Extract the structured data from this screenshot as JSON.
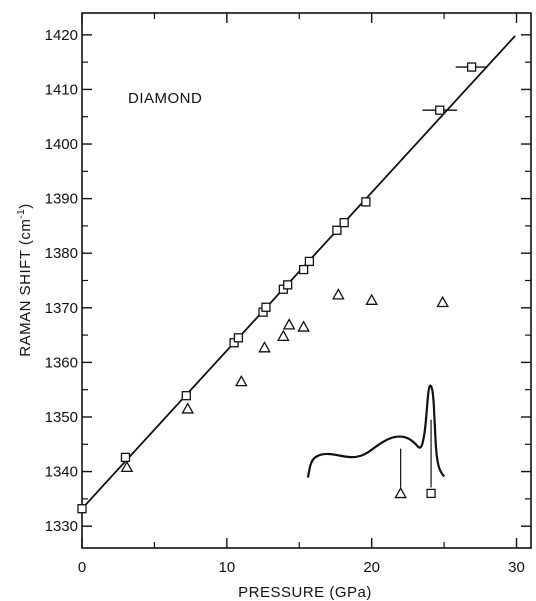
{
  "chart_data": {
    "type": "scatter",
    "annotation": "DIAMOND",
    "xlabel": "PRESSURE (GPa)",
    "ylabel_main": "RAMAN SHIFT (cm",
    "ylabel_sup": "-1",
    "ylabel_close": ")",
    "xlim": [
      0,
      31
    ],
    "ylim": [
      1326,
      1424
    ],
    "x_ticks": [
      0,
      10,
      20,
      30
    ],
    "x_tick_labels": [
      "0",
      "10",
      "20",
      "30"
    ],
    "y_ticks": [
      1330,
      1340,
      1350,
      1360,
      1370,
      1380,
      1390,
      1400,
      1410,
      1420
    ],
    "y_tick_labels": [
      "1330",
      "1340",
      "1350",
      "1360",
      "1370",
      "1380",
      "1390",
      "1400",
      "1410",
      "1420"
    ],
    "grid": false,
    "series": [
      {
        "marker": "square",
        "points": [
          {
            "x": 0,
            "y": 1333.2
          },
          {
            "x": 3.0,
            "y": 1342.6
          },
          {
            "x": 7.2,
            "y": 1353.9
          },
          {
            "x": 10.5,
            "y": 1363.6
          },
          {
            "x": 10.8,
            "y": 1364.5
          },
          {
            "x": 12.5,
            "y": 1369.2
          },
          {
            "x": 12.7,
            "y": 1370.1
          },
          {
            "x": 13.9,
            "y": 1373.4
          },
          {
            "x": 14.2,
            "y": 1374.2
          },
          {
            "x": 15.3,
            "y": 1377.0
          },
          {
            "x": 15.7,
            "y": 1378.5
          },
          {
            "x": 17.6,
            "y": 1384.2
          },
          {
            "x": 18.1,
            "y": 1385.6
          },
          {
            "x": 19.6,
            "y": 1389.4
          },
          {
            "x": 24.7,
            "y": 1406.2,
            "xerr": 1.2
          },
          {
            "x": 26.9,
            "y": 1414.1,
            "xerr": 1.1
          }
        ]
      },
      {
        "marker": "triangle",
        "points": [
          {
            "x": 3.1,
            "y": 1340.8
          },
          {
            "x": 7.3,
            "y": 1351.5
          },
          {
            "x": 11.0,
            "y": 1356.5
          },
          {
            "x": 12.6,
            "y": 1362.7
          },
          {
            "x": 13.9,
            "y": 1364.8
          },
          {
            "x": 14.3,
            "y": 1366.9
          },
          {
            "x": 15.3,
            "y": 1366.5
          },
          {
            "x": 17.7,
            "y": 1372.4
          },
          {
            "x": 20.0,
            "y": 1371.4
          },
          {
            "x": 24.9,
            "y": 1371.0
          }
        ]
      }
    ],
    "fit_line": {
      "x": [
        0,
        29.9
      ],
      "y": [
        1333.2,
        1419.8
      ]
    },
    "inset_spectrum": {
      "curve": [
        [
          15.6,
          1338.9
        ],
        [
          15.8,
          1341.8
        ],
        [
          16.2,
          1342.9
        ],
        [
          16.8,
          1343.3
        ],
        [
          17.5,
          1343.1
        ],
        [
          18.2,
          1342.7
        ],
        [
          18.9,
          1342.6
        ],
        [
          19.6,
          1343.2
        ],
        [
          20.4,
          1344.8
        ],
        [
          21.2,
          1346.1
        ],
        [
          21.9,
          1346.5
        ],
        [
          22.5,
          1346.2
        ],
        [
          23.0,
          1345.2
        ],
        [
          23.3,
          1344.2
        ],
        [
          23.5,
          1344.8
        ],
        [
          23.7,
          1347.8
        ],
        [
          23.85,
          1352.8
        ],
        [
          23.95,
          1355.5
        ],
        [
          24.1,
          1355.9
        ],
        [
          24.25,
          1354.2
        ],
        [
          24.35,
          1349.0
        ],
        [
          24.45,
          1343.6
        ],
        [
          24.6,
          1341.0
        ],
        [
          24.8,
          1339.8
        ],
        [
          25.0,
          1339.1
        ]
      ],
      "markers": [
        {
          "x": 22.0,
          "y": 1336.0,
          "marker": "triangle",
          "line_top": 1344.2
        },
        {
          "x": 24.1,
          "y": 1336.0,
          "marker": "square",
          "line_top": 1349.5
        }
      ]
    }
  }
}
